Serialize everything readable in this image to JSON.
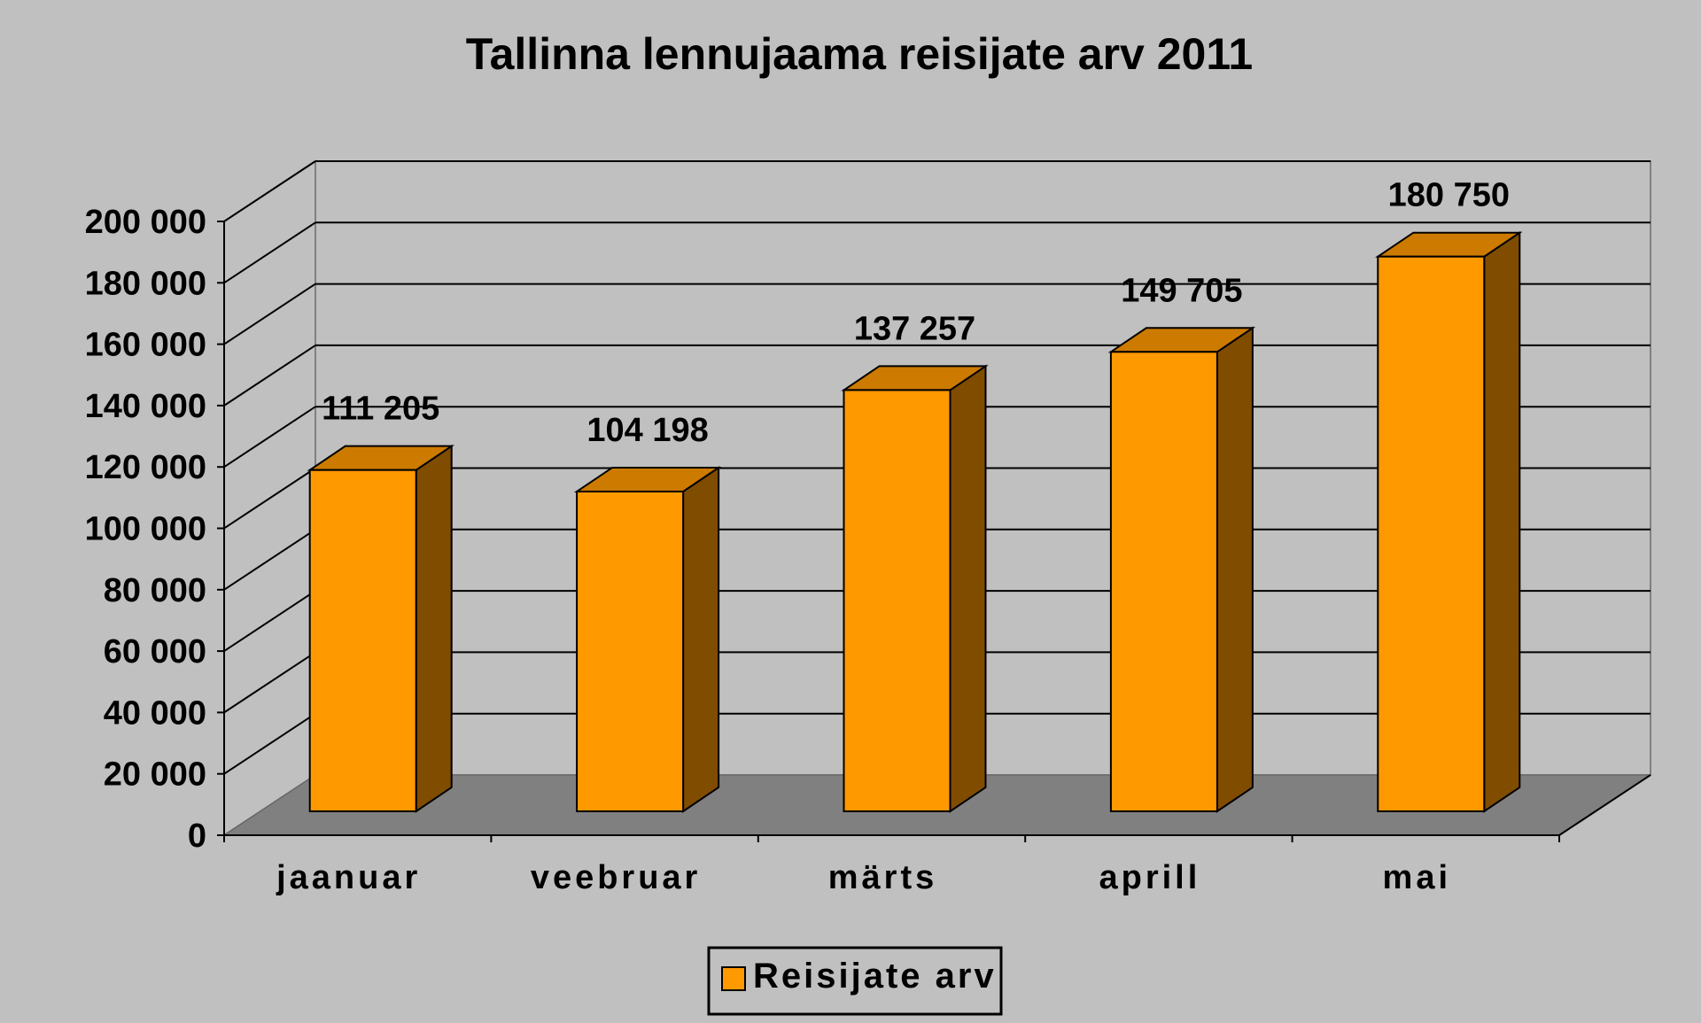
{
  "chart_data": {
    "type": "bar",
    "title": "Tallinna lennujaama reisijate arv 2011",
    "categories": [
      "jaanuar",
      "veebruar",
      "märts",
      "aprill",
      "mai"
    ],
    "series": [
      {
        "name": "Reisijate arv",
        "values": [
          111205,
          104198,
          137257,
          149705,
          180750
        ],
        "data_labels": [
          "111 205",
          "104 198",
          "137 257",
          "149 705",
          "180 750"
        ]
      }
    ],
    "ylim": [
      0,
      200000
    ],
    "yticks": [
      0,
      20000,
      40000,
      60000,
      80000,
      100000,
      120000,
      140000,
      160000,
      180000,
      200000
    ],
    "ytick_labels": [
      "0",
      "20 000",
      "40 000",
      "60 000",
      "80 000",
      "100 000",
      "120 000",
      "140 000",
      "160 000",
      "180 000",
      "200 000"
    ],
    "grid": true,
    "legend_position": "bottom",
    "three_d": true,
    "colors": {
      "background": "#c0c0c0",
      "bar_front": "#ff9900",
      "bar_top": "#cc7a00",
      "bar_side": "#7f4c00",
      "floor": "#808080",
      "gridline": "#000000"
    }
  }
}
